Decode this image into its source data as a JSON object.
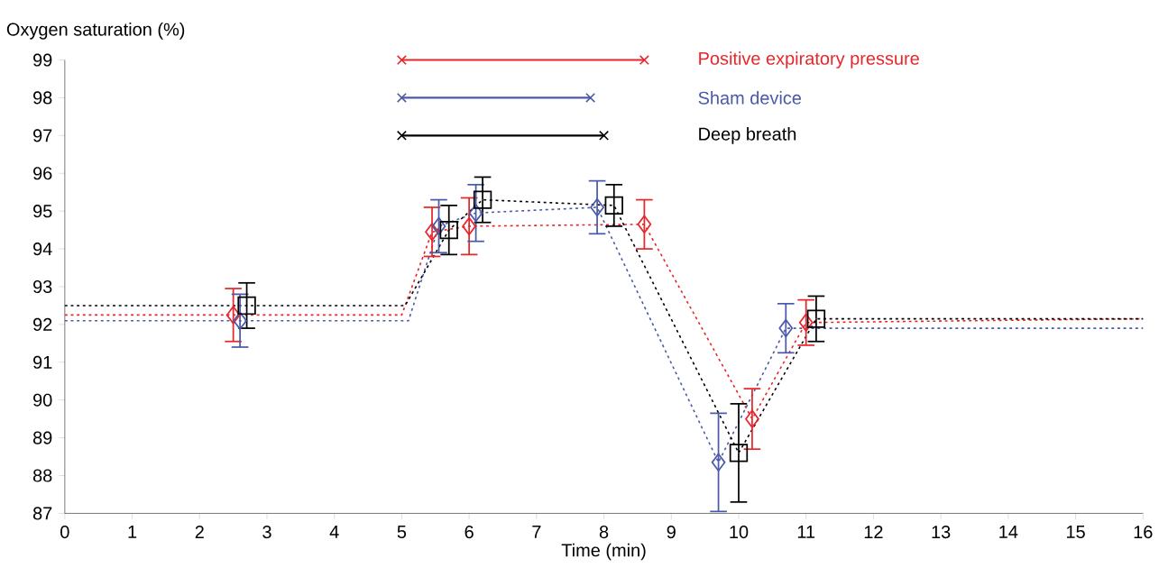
{
  "chart_data": {
    "type": "scatter",
    "xlabel": "Time (min)",
    "ylabel": "Oxygen saturation (%)",
    "xlim": [
      0,
      16
    ],
    "ylim": [
      87,
      99
    ],
    "xticks": [
      0,
      1,
      2,
      3,
      4,
      5,
      6,
      7,
      8,
      9,
      10,
      11,
      12,
      13,
      14,
      15,
      16
    ],
    "yticks": [
      87,
      88,
      89,
      90,
      91,
      92,
      93,
      94,
      95,
      96,
      97,
      98,
      99
    ],
    "series": [
      {
        "type": "line",
        "color": "#e8262a",
        "line_style": "dotted",
        "marker": "none",
        "x": [
          0,
          2.5,
          5.0,
          5.45,
          6.0,
          8.6,
          10.2,
          11.0,
          16
        ],
        "values": [
          92.25,
          92.25,
          92.25,
          94.45,
          94.6,
          94.65,
          89.5,
          92.05,
          92.15
        ]
      },
      {
        "type": "line",
        "color": "#4a5aa8",
        "line_style": "dotted",
        "marker": "none",
        "x": [
          0,
          2.6,
          5.1,
          5.55,
          6.1,
          7.9,
          9.7,
          10.7,
          16
        ],
        "values": [
          92.1,
          92.1,
          92.1,
          94.6,
          94.95,
          95.1,
          88.35,
          91.9,
          91.9
        ]
      },
      {
        "type": "line",
        "color": "#000000",
        "line_style": "dotted",
        "marker": "none",
        "x": [
          0,
          2.7,
          5.05,
          5.7,
          6.2,
          8.15,
          10.0,
          11.15,
          16
        ],
        "values": [
          92.5,
          92.5,
          92.5,
          94.5,
          95.3,
          95.15,
          88.6,
          92.15,
          92.15
        ]
      },
      {
        "color": "#e8262a",
        "marker": "diamond",
        "x": [
          2.5,
          5.45,
          6.0,
          8.6,
          10.2,
          11.0
        ],
        "values": [
          92.25,
          94.45,
          94.6,
          94.65,
          89.5,
          92.05
        ],
        "errors": [
          0.7,
          0.65,
          0.75,
          0.65,
          0.8,
          0.6
        ]
      },
      {
        "color": "#4a5aa8",
        "marker": "diamond",
        "x": [
          2.6,
          5.55,
          6.1,
          7.9,
          9.7,
          10.7
        ],
        "values": [
          92.1,
          94.6,
          94.95,
          95.1,
          88.35,
          91.9
        ],
        "errors": [
          0.7,
          0.7,
          0.75,
          0.7,
          1.3,
          0.65
        ]
      },
      {
        "color": "#000000",
        "marker": "square",
        "x": [
          2.7,
          5.7,
          6.2,
          8.15,
          10.0,
          11.15
        ],
        "values": [
          92.5,
          94.5,
          95.3,
          95.15,
          88.6,
          92.15
        ],
        "errors": [
          0.6,
          0.65,
          0.6,
          0.55,
          1.3,
          0.6
        ]
      },
      {
        "type": "line",
        "name": "Positive expiratory pressure",
        "color": "#e8262a",
        "line_style": "solid",
        "marker": "cross",
        "x": [
          5.0,
          8.6
        ],
        "values": [
          99,
          99
        ]
      },
      {
        "type": "line",
        "name": "Sham device",
        "color": "#4a5aa8",
        "line_style": "solid",
        "marker": "cross",
        "x": [
          5.0,
          7.8
        ],
        "values": [
          98,
          98
        ]
      },
      {
        "type": "line",
        "name": "Deep breath",
        "color": "#000000",
        "line_style": "solid",
        "marker": "cross",
        "x": [
          5.0,
          8.0
        ],
        "values": [
          97,
          97
        ]
      }
    ]
  }
}
